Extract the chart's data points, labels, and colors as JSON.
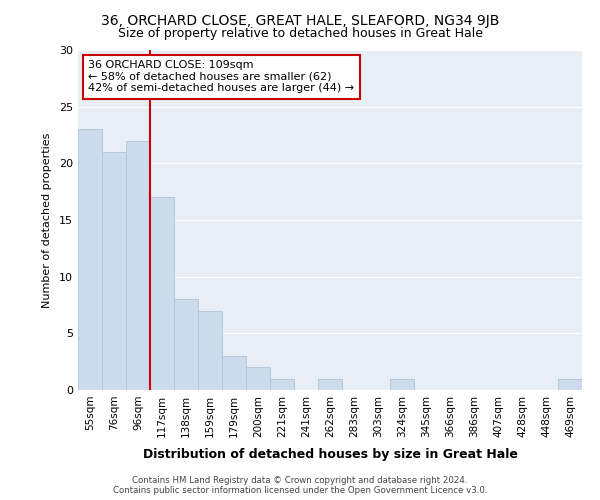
{
  "title1": "36, ORCHARD CLOSE, GREAT HALE, SLEAFORD, NG34 9JB",
  "title2": "Size of property relative to detached houses in Great Hale",
  "xlabel": "Distribution of detached houses by size in Great Hale",
  "ylabel": "Number of detached properties",
  "categories": [
    "55sqm",
    "76sqm",
    "96sqm",
    "117sqm",
    "138sqm",
    "159sqm",
    "179sqm",
    "200sqm",
    "221sqm",
    "241sqm",
    "262sqm",
    "283sqm",
    "303sqm",
    "324sqm",
    "345sqm",
    "366sqm",
    "386sqm",
    "407sqm",
    "428sqm",
    "448sqm",
    "469sqm"
  ],
  "values": [
    23,
    21,
    22,
    17,
    8,
    7,
    3,
    2,
    1,
    0,
    1,
    0,
    0,
    1,
    0,
    0,
    0,
    0,
    0,
    0,
    1
  ],
  "bar_color": "#cddcec",
  "bar_edgecolor": "#afc4d8",
  "vline_x_idx": 2,
  "vline_color": "#cc0000",
  "annotation_text": "36 ORCHARD CLOSE: 109sqm\n← 58% of detached houses are smaller (62)\n42% of semi-detached houses are larger (44) →",
  "annotation_box_edgecolor": "#cc0000",
  "ylim": [
    0,
    30
  ],
  "yticks": [
    0,
    5,
    10,
    15,
    20,
    25,
    30
  ],
  "plot_bg_color": "#e8eef5",
  "footer": "Contains HM Land Registry data © Crown copyright and database right 2024.\nContains public sector information licensed under the Open Government Licence v3.0."
}
